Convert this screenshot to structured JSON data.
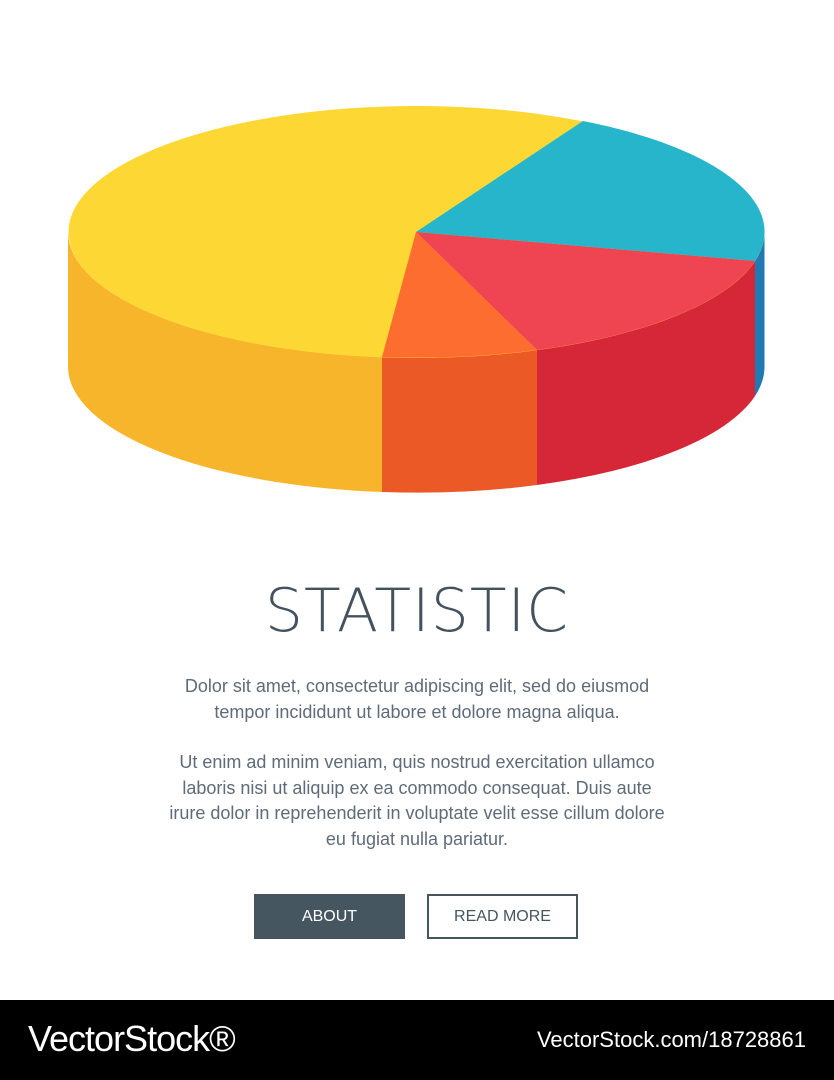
{
  "title": "STATISTIC",
  "paragraphs": [
    [
      "Dolor sit amet, consectetur adipiscing elit, sed do eiusmod",
      "tempor incididunt ut labore et dolore magna aliqua."
    ],
    [
      "Ut enim ad minim veniam, quis nostrud exercitation ullamco",
      "laboris nisi ut aliquip ex ea commodo consequat. Duis aute",
      "irure dolor in reprehenderit in voluptate velit esse cillum dolore",
      "eu fugiat nulla pariatur."
    ]
  ],
  "buttons": [
    "ABOUT",
    "READ MORE"
  ],
  "footer": {
    "brand": "VectorStock®",
    "url": "VectorStock.com/18728861"
  }
}
